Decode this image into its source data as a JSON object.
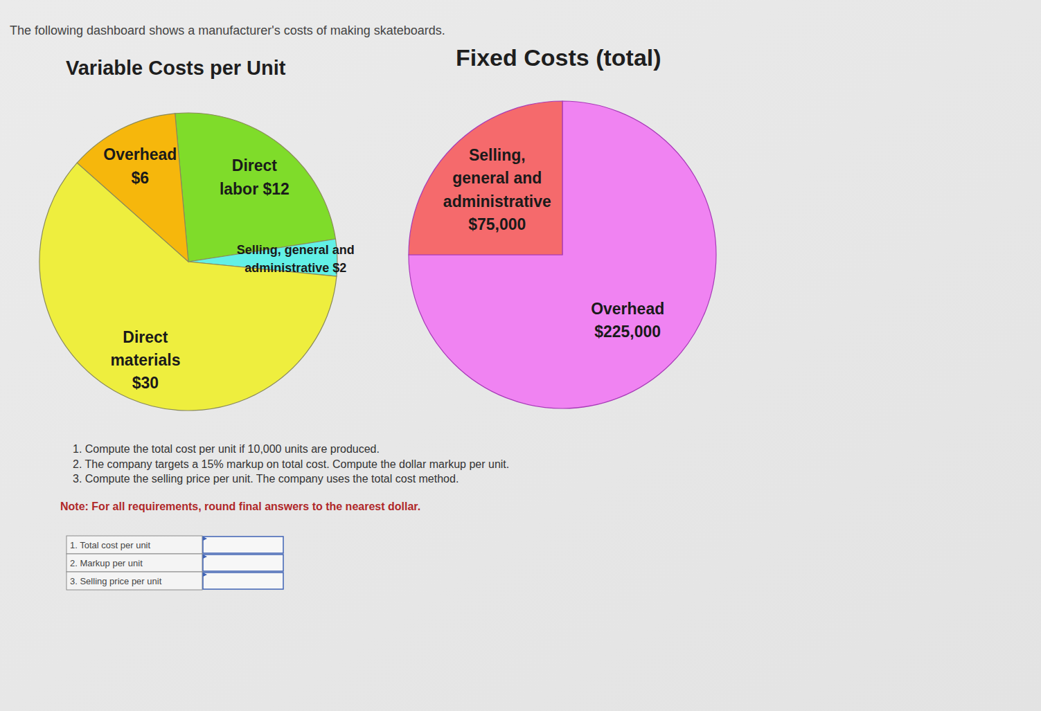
{
  "header": {
    "text": "The following dashboard shows a manufacturer's costs of making skateboards."
  },
  "chart_data": [
    {
      "type": "pie",
      "title": "Variable Costs per Unit",
      "categories": [
        "Direct labor",
        "Selling, general and administrative",
        "Direct materials",
        "Overhead"
      ],
      "values": [
        12,
        2,
        30,
        6
      ],
      "value_labels": [
        "$12",
        "$2",
        "$30",
        "$6"
      ],
      "colors": [
        "#7fdc2a",
        "#62f0e6",
        "#eeee3e",
        "#f6b70c"
      ],
      "data_labels": true
    },
    {
      "type": "pie",
      "title": "Fixed Costs (total)",
      "categories": [
        "Overhead",
        "Selling, general and administrative"
      ],
      "values": [
        225000,
        75000
      ],
      "value_labels": [
        "$225,000",
        "$75,000"
      ],
      "colors": [
        "#f083f2",
        "#f56a6c"
      ],
      "data_labels": true
    }
  ],
  "questions": [
    "1. Compute the total cost per unit if 10,000 units are produced.",
    "2. The company targets a 15% markup on total cost. Compute the dollar markup per unit.",
    "3. Compute the selling price per unit. The company uses the total cost method."
  ],
  "note": "Note: For all requirements, round final answers to the nearest dollar.",
  "table": {
    "rows": [
      "1. Total cost per unit",
      "2. Markup per unit",
      "3. Selling price per unit"
    ]
  }
}
